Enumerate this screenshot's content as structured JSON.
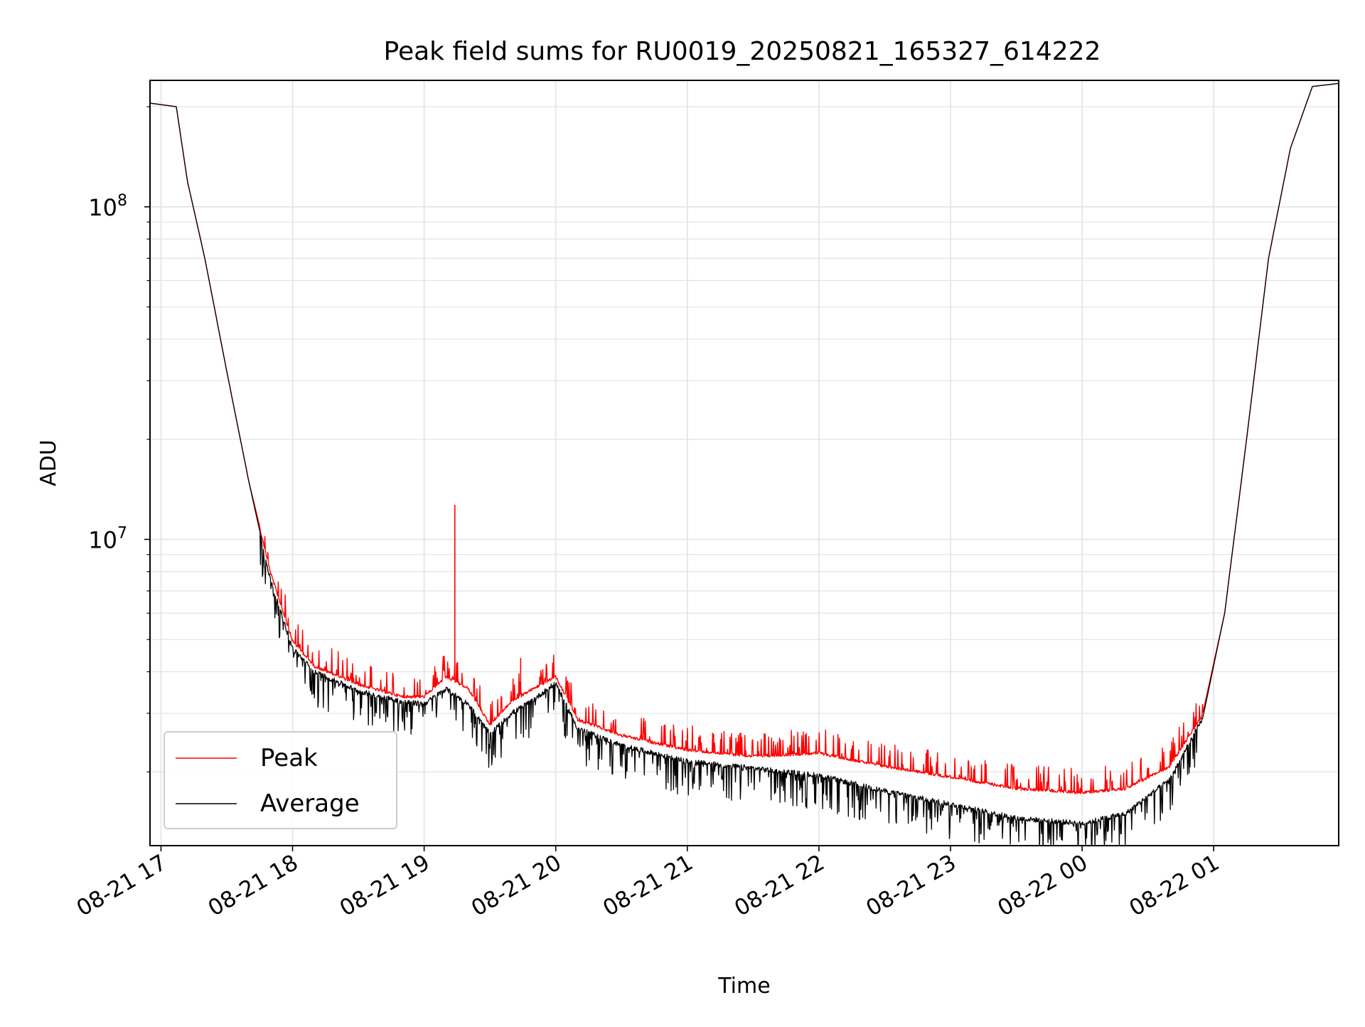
{
  "chart_data": {
    "type": "line",
    "title": "Peak field sums for RU0019_20250821_165327_614222",
    "xlabel": "Time",
    "ylabel": "ADU",
    "yscale": "log",
    "ylim": [
      1200000,
      240000000
    ],
    "xlim": [
      "2025-08-21 16:55",
      "2025-08-22 01:57"
    ],
    "grid": {
      "major": true,
      "minor_y": true
    },
    "legend": {
      "position": "lower-left"
    },
    "x_ticks": [
      {
        "label": "08-21 17",
        "t": "2025-08-21 17:00"
      },
      {
        "label": "08-21 18",
        "t": "2025-08-21 18:00"
      },
      {
        "label": "08-21 19",
        "t": "2025-08-21 19:00"
      },
      {
        "label": "08-21 20",
        "t": "2025-08-21 20:00"
      },
      {
        "label": "08-21 21",
        "t": "2025-08-21 21:00"
      },
      {
        "label": "08-21 22",
        "t": "2025-08-21 22:00"
      },
      {
        "label": "08-21 23",
        "t": "2025-08-21 23:00"
      },
      {
        "label": "08-22 00",
        "t": "2025-08-22 00:00"
      },
      {
        "label": "08-22 01",
        "t": "2025-08-22 01:00"
      }
    ],
    "y_ticks": [
      {
        "base": "10",
        "exp": "7",
        "value": 10000000
      },
      {
        "base": "10",
        "exp": "8",
        "value": 100000000
      }
    ],
    "series": [
      {
        "name": "Peak",
        "color": "#ff0000",
        "noise_amplitude_ratio": 0.08,
        "spikes": [
          {
            "t": "2025-08-21 19:14",
            "v": 12700000
          },
          {
            "t": "2025-08-21 19:44",
            "v": 4400000
          },
          {
            "t": "2025-08-21 21:12",
            "v": 2600000
          }
        ],
        "points": [
          {
            "t": "2025-08-21 16:55",
            "v": 205000000
          },
          {
            "t": "2025-08-21 17:07",
            "v": 200000000
          },
          {
            "t": "2025-08-21 17:12",
            "v": 120000000
          },
          {
            "t": "2025-08-21 17:20",
            "v": 70000000
          },
          {
            "t": "2025-08-21 17:30",
            "v": 32000000
          },
          {
            "t": "2025-08-21 17:40",
            "v": 15000000
          },
          {
            "t": "2025-08-21 17:50",
            "v": 8000000
          },
          {
            "t": "2025-08-21 18:00",
            "v": 5000000
          },
          {
            "t": "2025-08-21 18:10",
            "v": 4200000
          },
          {
            "t": "2025-08-21 18:30",
            "v": 3700000
          },
          {
            "t": "2025-08-21 18:50",
            "v": 3400000
          },
          {
            "t": "2025-08-21 19:00",
            "v": 3400000
          },
          {
            "t": "2025-08-21 19:10",
            "v": 3900000
          },
          {
            "t": "2025-08-21 19:20",
            "v": 3600000
          },
          {
            "t": "2025-08-21 19:30",
            "v": 2800000
          },
          {
            "t": "2025-08-21 19:40",
            "v": 3300000
          },
          {
            "t": "2025-08-21 19:50",
            "v": 3600000
          },
          {
            "t": "2025-08-21 20:00",
            "v": 3900000
          },
          {
            "t": "2025-08-21 20:10",
            "v": 2900000
          },
          {
            "t": "2025-08-21 20:30",
            "v": 2600000
          },
          {
            "t": "2025-08-21 21:00",
            "v": 2350000
          },
          {
            "t": "2025-08-21 21:30",
            "v": 2250000
          },
          {
            "t": "2025-08-21 22:00",
            "v": 2300000
          },
          {
            "t": "2025-08-21 22:30",
            "v": 2100000
          },
          {
            "t": "2025-08-21 23:00",
            "v": 1950000
          },
          {
            "t": "2025-08-21 23:30",
            "v": 1800000
          },
          {
            "t": "2025-08-22 00:00",
            "v": 1750000
          },
          {
            "t": "2025-08-22 00:20",
            "v": 1800000
          },
          {
            "t": "2025-08-22 00:40",
            "v": 2100000
          },
          {
            "t": "2025-08-22 00:55",
            "v": 3000000
          },
          {
            "t": "2025-08-22 01:05",
            "v": 6000000
          },
          {
            "t": "2025-08-22 01:15",
            "v": 20000000
          },
          {
            "t": "2025-08-22 01:25",
            "v": 70000000
          },
          {
            "t": "2025-08-22 01:35",
            "v": 150000000
          },
          {
            "t": "2025-08-22 01:45",
            "v": 230000000
          },
          {
            "t": "2025-08-22 01:57",
            "v": 235000000
          }
        ]
      },
      {
        "name": "Average",
        "color": "#000000",
        "noise_amplitude_ratio": 0.12,
        "spikes": [],
        "points": [
          {
            "t": "2025-08-21 16:55",
            "v": 205000000
          },
          {
            "t": "2025-08-21 17:07",
            "v": 200000000
          },
          {
            "t": "2025-08-21 17:12",
            "v": 120000000
          },
          {
            "t": "2025-08-21 17:20",
            "v": 70000000
          },
          {
            "t": "2025-08-21 17:30",
            "v": 32000000
          },
          {
            "t": "2025-08-21 17:40",
            "v": 15000000
          },
          {
            "t": "2025-08-21 17:50",
            "v": 7500000
          },
          {
            "t": "2025-08-21 18:00",
            "v": 4700000
          },
          {
            "t": "2025-08-21 18:10",
            "v": 4000000
          },
          {
            "t": "2025-08-21 18:30",
            "v": 3500000
          },
          {
            "t": "2025-08-21 18:50",
            "v": 3250000
          },
          {
            "t": "2025-08-21 19:00",
            "v": 3200000
          },
          {
            "t": "2025-08-21 19:10",
            "v": 3550000
          },
          {
            "t": "2025-08-21 19:20",
            "v": 3200000
          },
          {
            "t": "2025-08-21 19:30",
            "v": 2600000
          },
          {
            "t": "2025-08-21 19:40",
            "v": 3000000
          },
          {
            "t": "2025-08-21 19:50",
            "v": 3300000
          },
          {
            "t": "2025-08-21 20:00",
            "v": 3700000
          },
          {
            "t": "2025-08-21 20:10",
            "v": 2700000
          },
          {
            "t": "2025-08-21 20:30",
            "v": 2400000
          },
          {
            "t": "2025-08-21 21:00",
            "v": 2150000
          },
          {
            "t": "2025-08-21 21:30",
            "v": 2050000
          },
          {
            "t": "2025-08-21 22:00",
            "v": 1950000
          },
          {
            "t": "2025-08-21 22:30",
            "v": 1750000
          },
          {
            "t": "2025-08-21 23:00",
            "v": 1600000
          },
          {
            "t": "2025-08-21 23:30",
            "v": 1450000
          },
          {
            "t": "2025-08-22 00:00",
            "v": 1400000
          },
          {
            "t": "2025-08-22 00:20",
            "v": 1500000
          },
          {
            "t": "2025-08-22 00:40",
            "v": 1900000
          },
          {
            "t": "2025-08-22 00:55",
            "v": 2900000
          },
          {
            "t": "2025-08-22 01:05",
            "v": 6000000
          },
          {
            "t": "2025-08-22 01:15",
            "v": 20000000
          },
          {
            "t": "2025-08-22 01:25",
            "v": 70000000
          },
          {
            "t": "2025-08-22 01:35",
            "v": 150000000
          },
          {
            "t": "2025-08-22 01:45",
            "v": 230000000
          },
          {
            "t": "2025-08-22 01:57",
            "v": 235000000
          }
        ]
      }
    ]
  }
}
